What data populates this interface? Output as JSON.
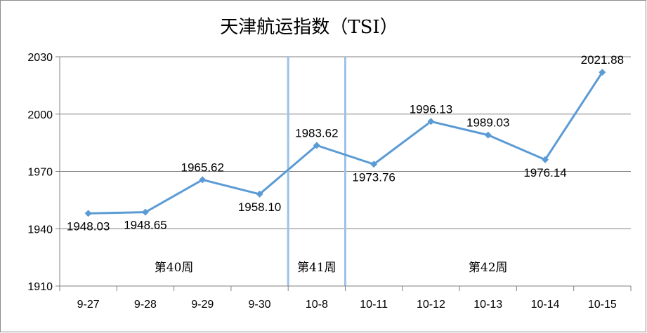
{
  "chart_data": {
    "type": "line",
    "title": "天津航运指数（TSI）",
    "categories": [
      "9-27",
      "9-28",
      "9-29",
      "9-30",
      "10-8",
      "10-11",
      "10-12",
      "10-13",
      "10-14",
      "10-15"
    ],
    "series": [
      {
        "values": [
          1948.03,
          1948.65,
          1965.62,
          1958.1,
          1983.62,
          1973.76,
          1996.13,
          1989.03,
          1976.14,
          2021.88
        ]
      }
    ],
    "data_labels": [
      "1948.03",
      "1948.65",
      "1965.62",
      "1958.10",
      "1983.62",
      "1973.76",
      "1996.13",
      "1989.03",
      "1976.14",
      "2021.88"
    ],
    "label_positions": [
      "below",
      "below",
      "above",
      "below",
      "above",
      "below",
      "above",
      "above",
      "below",
      "above"
    ],
    "yticks": [
      "1910",
      "1940",
      "1970",
      "2000",
      "2030"
    ],
    "ylim": [
      1910,
      2030
    ],
    "grid": true,
    "line_color": "#5b9bd5",
    "divider_color": "#9dc3e6",
    "weeks": [
      {
        "label": "第40周",
        "start_index": 0,
        "end_index": 3
      },
      {
        "label": "第41周",
        "start_index": 4,
        "end_index": 4
      },
      {
        "label": "第42周",
        "start_index": 5,
        "end_index": 9
      }
    ]
  }
}
